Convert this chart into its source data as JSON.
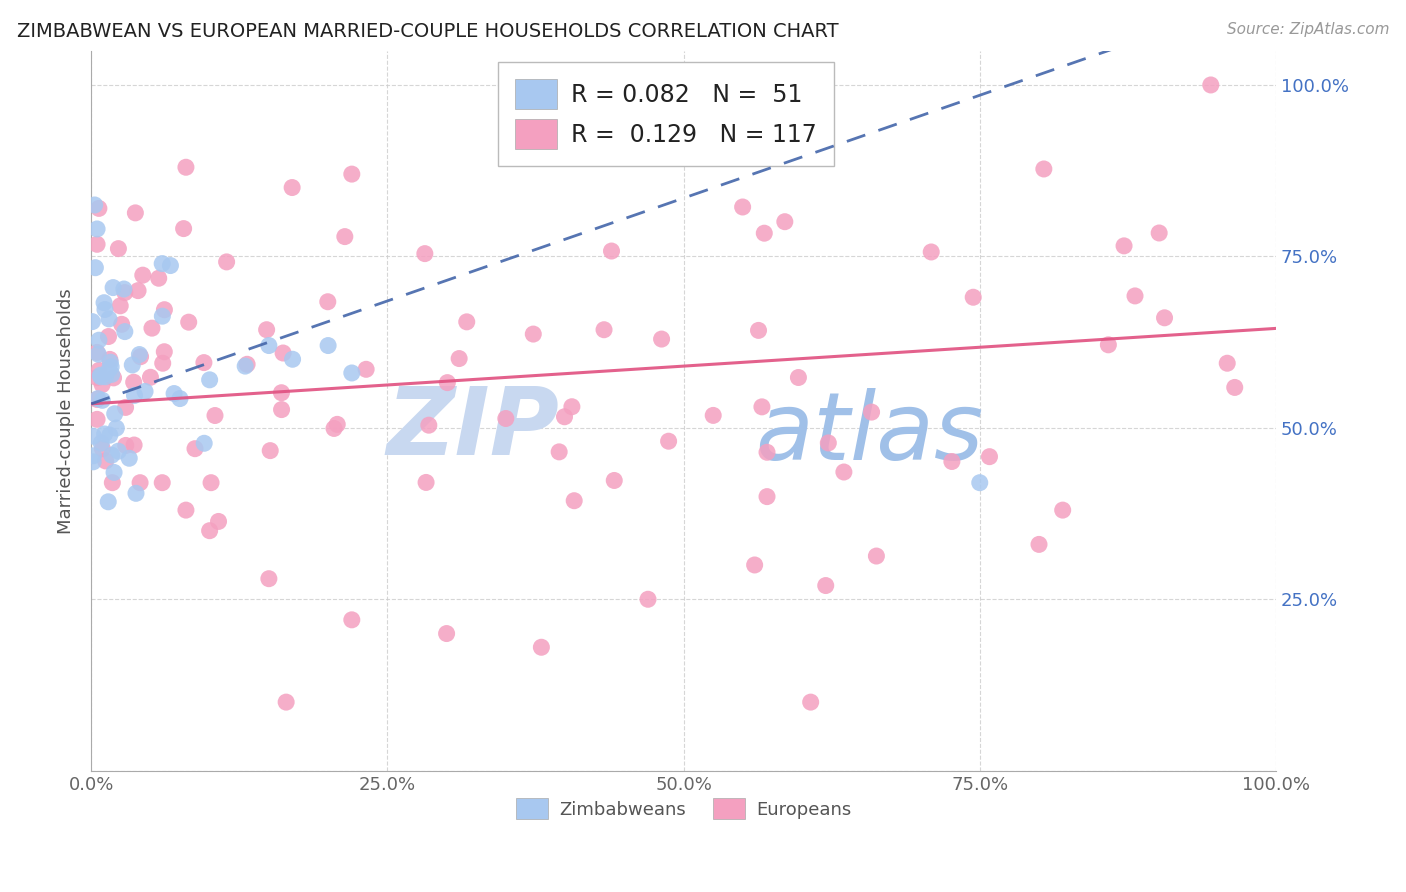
{
  "title": "ZIMBABWEAN VS EUROPEAN MARRIED-COUPLE HOUSEHOLDS CORRELATION CHART",
  "source": "Source: ZipAtlas.com",
  "ylabel": "Married-couple Households",
  "r_zimbabwean": 0.082,
  "n_zimbabwean": 51,
  "r_european": 0.129,
  "n_european": 117,
  "zimbabwean_color": "#a8c8f0",
  "european_color": "#f4a0c0",
  "trend_zimbabwean_color": "#4466aa",
  "trend_european_color": "#e05080",
  "background_color": "#ffffff",
  "grid_color": "#cccccc",
  "title_color": "#222222",
  "right_axis_color": "#4472c4",
  "watermark_zip_color": "#c0d4f0",
  "watermark_atlas_color": "#90b8e8",
  "xmin": 0.0,
  "xmax": 1.0,
  "ymin": 0.0,
  "ymax": 1.05,
  "legend_box_color": "#ffffff",
  "legend_edge_color": "#bbbbbb"
}
